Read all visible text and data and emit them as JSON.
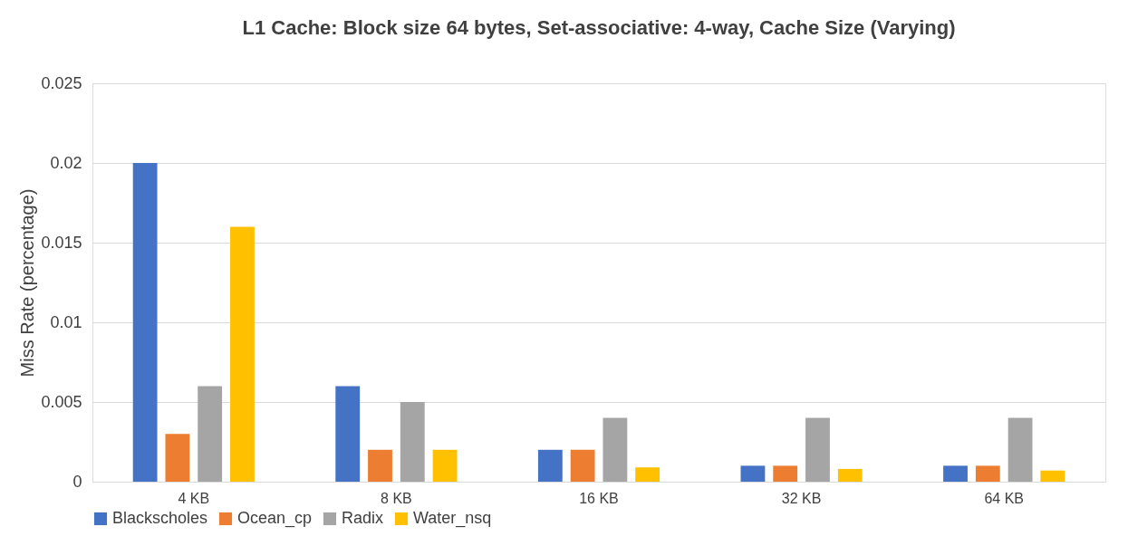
{
  "chart_data": {
    "type": "bar",
    "title": "L1 Cache: Block size 64 bytes, Set-associative: 4-way, Cache Size (Varying)",
    "ylabel": "Miss Rate (percentage)",
    "categories": [
      "4 KB",
      "8 KB",
      "16 KB",
      "32 KB",
      "64 KB"
    ],
    "series": [
      {
        "name": "Blackscholes",
        "color": "#4472c4",
        "values": [
          0.02,
          0.006,
          0.002,
          0.001,
          0.001
        ]
      },
      {
        "name": "Ocean_cp",
        "color": "#ed7d31",
        "values": [
          0.003,
          0.002,
          0.002,
          0.001,
          0.001
        ]
      },
      {
        "name": "Radix",
        "color": "#a5a5a5",
        "values": [
          0.006,
          0.005,
          0.004,
          0.004,
          0.004
        ]
      },
      {
        "name": "Water_nsq",
        "color": "#ffc000",
        "values": [
          0.016,
          0.002,
          0.0009,
          0.0008,
          0.0007
        ]
      }
    ],
    "ylim": [
      0,
      0.025
    ],
    "yticks": [
      0,
      0.005,
      0.01,
      0.015,
      0.02,
      0.025
    ],
    "grid": "y",
    "legend": "bottom"
  }
}
